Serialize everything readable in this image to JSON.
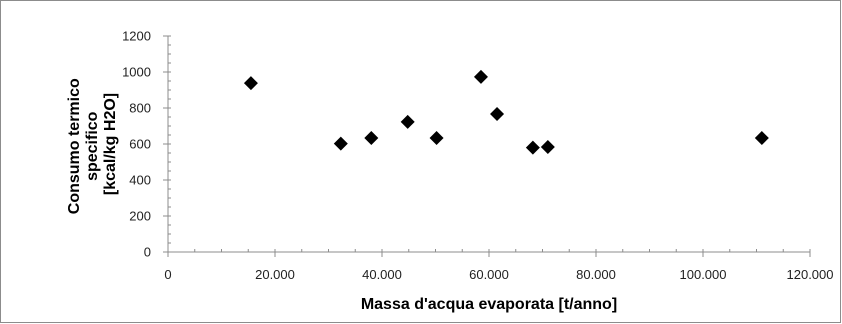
{
  "chart_data": {
    "type": "scatter",
    "title": "",
    "xlabel": "Massa d'acqua evaporata [t/anno]",
    "ylabel_lines": [
      "Consumo termico",
      "specifico",
      "[kcal/kg H2O]"
    ],
    "xlim": [
      0,
      120000
    ],
    "ylim": [
      0,
      1200
    ],
    "x_ticks": [
      {
        "value": 0,
        "label": "0"
      },
      {
        "value": 20000,
        "label": "20.000"
      },
      {
        "value": 40000,
        "label": "40.000"
      },
      {
        "value": 60000,
        "label": "60.000"
      },
      {
        "value": 80000,
        "label": "80.000"
      },
      {
        "value": 100000,
        "label": "100.000"
      },
      {
        "value": 120000,
        "label": "120.000"
      }
    ],
    "y_ticks": [
      {
        "value": 0,
        "label": "0"
      },
      {
        "value": 200,
        "label": "200"
      },
      {
        "value": 400,
        "label": "400"
      },
      {
        "value": 600,
        "label": "600"
      },
      {
        "value": 800,
        "label": "800"
      },
      {
        "value": 1000,
        "label": "1000"
      },
      {
        "value": 1200,
        "label": "1200"
      }
    ],
    "grid": false,
    "legend": "none",
    "marker": "diamond",
    "marker_color": "#000000",
    "points": [
      {
        "x": 15500,
        "y": 938
      },
      {
        "x": 32300,
        "y": 602
      },
      {
        "x": 38000,
        "y": 633
      },
      {
        "x": 44800,
        "y": 723
      },
      {
        "x": 50200,
        "y": 633
      },
      {
        "x": 58500,
        "y": 973
      },
      {
        "x": 61500,
        "y": 767
      },
      {
        "x": 68200,
        "y": 580
      },
      {
        "x": 71000,
        "y": 583
      },
      {
        "x": 111000,
        "y": 633
      }
    ]
  }
}
